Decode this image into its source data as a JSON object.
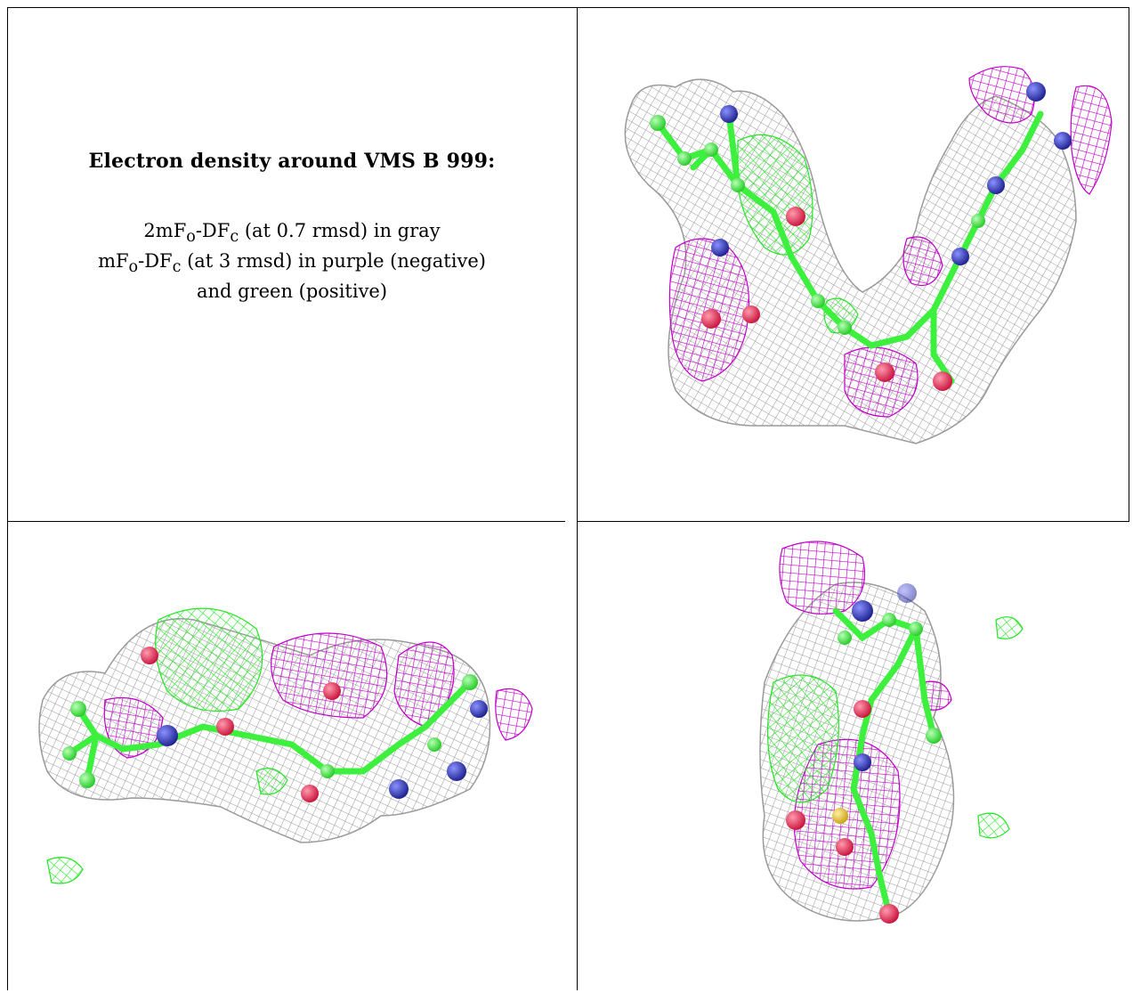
{
  "caption": {
    "title": "Electron density around VMS B 999:",
    "line1": {
      "prefix": "2mF",
      "sub1": "o",
      "mid": "-DF",
      "sub2": "c",
      "suffix": " (at 0.7 rmsd) in gray"
    },
    "line2": {
      "prefix": "mF",
      "sub1": "o",
      "mid": "-DF",
      "sub2": "c",
      "suffix": " (at 3 rmsd) in purple (negative)"
    },
    "line3": "and green (positive)"
  },
  "colors": {
    "map_gray": "#9a9a9a",
    "map_purple": "#c000c8",
    "map_green": "#22e622",
    "carbon": "#3ef03e",
    "nitrogen": "#2a33b0",
    "oxygen": "#e8204a",
    "sulfur": "#e8c020"
  },
  "panels": [
    {
      "name": "view-top-right",
      "content": "electron-density-render"
    },
    {
      "name": "view-bottom-left",
      "content": "electron-density-render"
    },
    {
      "name": "view-bottom-right",
      "content": "electron-density-render"
    }
  ]
}
